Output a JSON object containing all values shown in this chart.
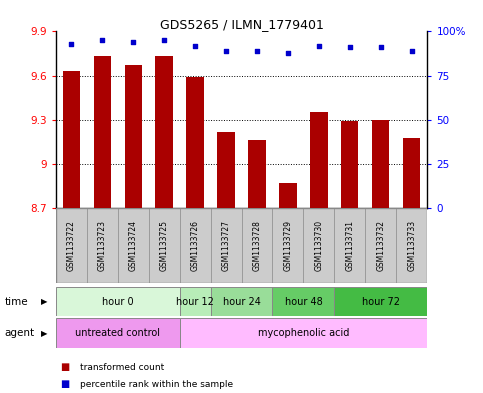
{
  "title": "GDS5265 / ILMN_1779401",
  "samples": [
    "GSM1133722",
    "GSM1133723",
    "GSM1133724",
    "GSM1133725",
    "GSM1133726",
    "GSM1133727",
    "GSM1133728",
    "GSM1133729",
    "GSM1133730",
    "GSM1133731",
    "GSM1133732",
    "GSM1133733"
  ],
  "bar_values": [
    9.63,
    9.73,
    9.67,
    9.73,
    9.59,
    9.22,
    9.16,
    8.87,
    9.35,
    9.29,
    9.3,
    9.18
  ],
  "percentile_values": [
    93,
    95,
    94,
    95,
    92,
    89,
    89,
    88,
    92,
    91,
    91,
    89
  ],
  "bar_bottom": 8.7,
  "ylim_left": [
    8.7,
    9.9
  ],
  "ylim_right": [
    0,
    100
  ],
  "yticks_left": [
    8.7,
    9.0,
    9.3,
    9.6,
    9.9
  ],
  "ytick_labels_left": [
    "8.7",
    "9",
    "9.3",
    "9.6",
    "9.9"
  ],
  "yticks_right": [
    0,
    25,
    50,
    75,
    100
  ],
  "ytick_labels_right": [
    "0",
    "25",
    "50",
    "75",
    "100%"
  ],
  "bar_color": "#aa0000",
  "dot_color": "#0000cc",
  "grid_color": "#000000",
  "time_groups": [
    {
      "label": "hour 0",
      "start": 0,
      "end": 4,
      "color": "#d9f7d9"
    },
    {
      "label": "hour 12",
      "start": 4,
      "end": 5,
      "color": "#b8edb8"
    },
    {
      "label": "hour 24",
      "start": 5,
      "end": 7,
      "color": "#99dd99"
    },
    {
      "label": "hour 48",
      "start": 7,
      "end": 9,
      "color": "#66cc66"
    },
    {
      "label": "hour 72",
      "start": 9,
      "end": 12,
      "color": "#44bb44"
    }
  ],
  "agent_groups": [
    {
      "label": "untreated control",
      "start": 0,
      "end": 4,
      "color": "#ee99ee"
    },
    {
      "label": "mycophenolic acid",
      "start": 4,
      "end": 12,
      "color": "#ffbbff"
    }
  ],
  "legend_items": [
    {
      "color": "#aa0000",
      "label": "transformed count"
    },
    {
      "color": "#0000cc",
      "label": "percentile rank within the sample"
    }
  ],
  "time_label": "time",
  "agent_label": "agent",
  "bar_width": 0.55,
  "background_color": "#ffffff",
  "sample_bg_color": "#cccccc",
  "border_color": "#888888"
}
